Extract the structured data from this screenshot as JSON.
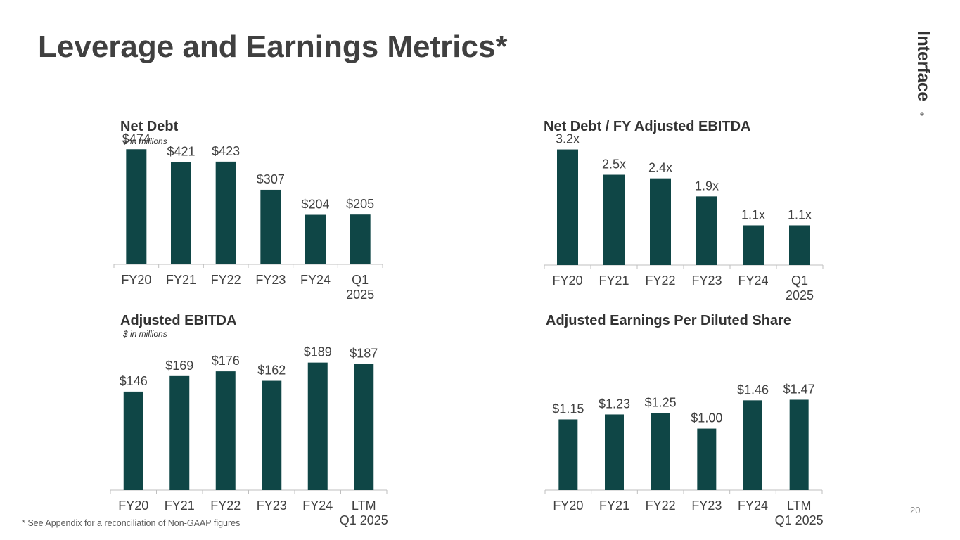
{
  "page": {
    "title": "Leverage and Earnings Metrics*",
    "logo": "Interface",
    "logo_mark": "®",
    "footnote": "* See Appendix for a reconciliation of Non-GAAP figures",
    "page_number": "20"
  },
  "colors": {
    "bar": "#0f4646",
    "axis": "#bfbfbf",
    "label": "#404040"
  },
  "chart_data": [
    {
      "type": "bar",
      "title": "Net Debt",
      "subtitle": "$ in millions",
      "categories": [
        [
          "FY20"
        ],
        [
          "FY21"
        ],
        [
          "FY22"
        ],
        [
          "FY23"
        ],
        [
          "FY24"
        ],
        [
          "Q1",
          "2025"
        ]
      ],
      "values": [
        474,
        421,
        423,
        307,
        204,
        205
      ],
      "data_labels": [
        "$474",
        "$421",
        "$423",
        "$307",
        "$204",
        "$205"
      ],
      "ylim": [
        0,
        550
      ]
    },
    {
      "type": "bar",
      "title": "Net Debt / FY Adjusted EBITDA",
      "subtitle": "",
      "categories": [
        [
          "FY20"
        ],
        [
          "FY21"
        ],
        [
          "FY22"
        ],
        [
          "FY23"
        ],
        [
          "FY24"
        ],
        [
          "Q1",
          "2025"
        ]
      ],
      "values": [
        3.2,
        2.5,
        2.4,
        1.9,
        1.1,
        1.1
      ],
      "data_labels": [
        "3.2x",
        "2.5x",
        "2.4x",
        "1.9x",
        "1.1x",
        "1.1x"
      ],
      "ylim": [
        0,
        3.6
      ]
    },
    {
      "type": "bar",
      "title": "Adjusted EBITDA",
      "subtitle": "$ in millions",
      "categories": [
        [
          "FY20"
        ],
        [
          "FY21"
        ],
        [
          "FY22"
        ],
        [
          "FY23"
        ],
        [
          "FY24"
        ],
        [
          "LTM",
          "Q1 2025"
        ]
      ],
      "values": [
        146,
        169,
        176,
        162,
        189,
        187
      ],
      "data_labels": [
        "$146",
        "$169",
        "$176",
        "$162",
        "$189",
        "$187"
      ],
      "ylim": [
        0,
        198
      ]
    },
    {
      "type": "bar",
      "title": "Adjusted Earnings Per Diluted Share",
      "subtitle": "",
      "categories": [
        [
          "FY20"
        ],
        [
          "FY21"
        ],
        [
          "FY22"
        ],
        [
          "FY23"
        ],
        [
          "FY24"
        ],
        [
          "LTM",
          "Q1 2025"
        ]
      ],
      "values": [
        1.15,
        1.23,
        1.25,
        1.0,
        1.46,
        1.47
      ],
      "data_labels": [
        "$1.15",
        "$1.23",
        "$1.25",
        "$1.00",
        "$1.46",
        "$1.47"
      ],
      "ylim": [
        0,
        1.83
      ]
    }
  ]
}
